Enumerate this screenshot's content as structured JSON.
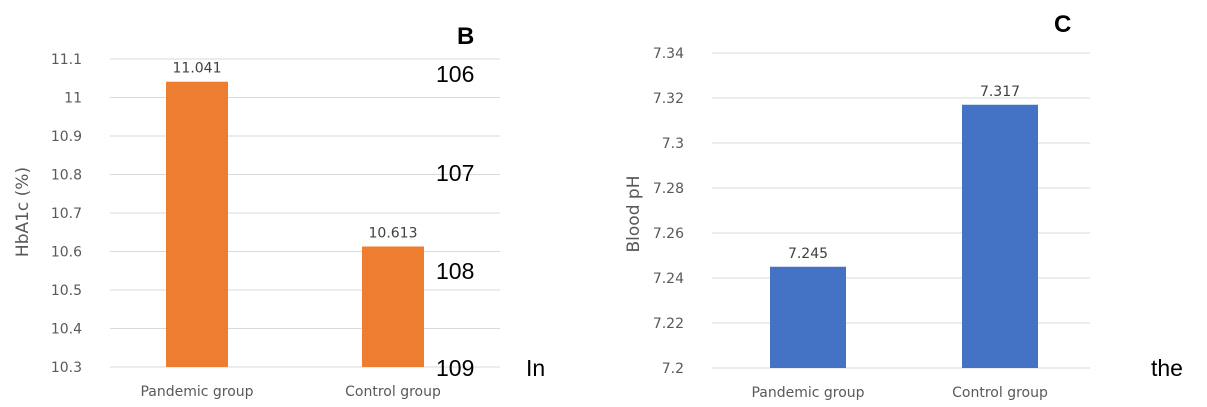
{
  "chart_data": [
    {
      "type": "bar",
      "panel_label": "B",
      "ylabel": "HbA1c (%)",
      "categories": [
        "Pandemic group",
        "Control group"
      ],
      "values": [
        11.041,
        10.613
      ],
      "data_labels": [
        "11.041",
        "10.613"
      ],
      "ylim": [
        10.3,
        11.1
      ],
      "yticks": [
        "10.3",
        "10.4",
        "10.5",
        "10.6",
        "10.7",
        "10.8",
        "10.9",
        "11",
        "11.1"
      ],
      "grid": true,
      "color": "#ED7D31"
    },
    {
      "type": "bar",
      "panel_label": "C",
      "ylabel": "Blood pH",
      "categories": [
        "Pandemic group",
        "Control group"
      ],
      "values": [
        7.245,
        7.317
      ],
      "data_labels": [
        "7.245",
        "7.317"
      ],
      "ylim": [
        7.2,
        7.34
      ],
      "yticks": [
        "7.2",
        "7.22",
        "7.24",
        "7.26",
        "7.28",
        "7.3",
        "7.32",
        "7.34"
      ],
      "grid": true,
      "color": "#4472C4"
    }
  ],
  "line_numbers": [
    "106",
    "107",
    "108",
    "109"
  ],
  "text_fragments": [
    "In",
    "the"
  ]
}
